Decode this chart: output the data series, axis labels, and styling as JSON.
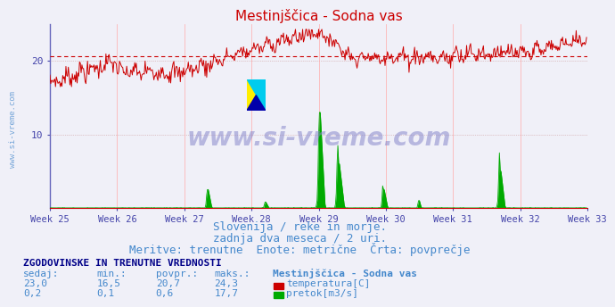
{
  "title": "Mestinjščica - Sodna vas",
  "title_color": "#cc0000",
  "title_fontsize": 11,
  "bg_color": "#f0f0f8",
  "plot_bg_color": "#f0f0f8",
  "grid_color": "#cc9999",
  "xticklabels": [
    "Week 25",
    "Week 26",
    "Week 27",
    "Week 28",
    "Week 29",
    "Week 30",
    "Week 31",
    "Week 32",
    "Week 33"
  ],
  "xtick_positions": [
    0,
    84,
    168,
    252,
    336,
    420,
    504,
    588,
    672
  ],
  "ylim": [
    0,
    25
  ],
  "yticks": [
    10,
    20
  ],
  "n_points": 672,
  "temp_avg": 20.7,
  "temp_color": "#cc0000",
  "flow_color": "#00aa00",
  "avg_line_color": "#cc0000",
  "watermark_text": "www.si-vreme.com",
  "watermark_color": "#8888cc",
  "watermark_fontsize": 20,
  "sub_text1": "Slovenija / reke in morje.",
  "sub_text2": "zadnja dva meseca / 2 uri.",
  "sub_text3": "Meritve: trenutne  Enote: metrične  Črta: povprečje",
  "sub_color": "#4488cc",
  "sub_fontsize": 9,
  "table_header": "ZGODOVINSKE IN TRENUTNE VREDNOSTI",
  "table_col1": "sedaj:",
  "table_col2": "min.:",
  "table_col3": "povpr.:",
  "table_col4": "maks.:",
  "table_col5": "Mestinjščica - Sodna vas",
  "table_row1": [
    "23,0",
    "16,5",
    "20,7",
    "24,3"
  ],
  "table_row2": [
    "0,2",
    "0,1",
    "0,6",
    "17,7"
  ],
  "legend_temp": "temperatura[C]",
  "legend_flow": "pretok[m3/s]",
  "table_color": "#4488cc",
  "table_header_color": "#000088",
  "table_fontsize": 8,
  "tick_color": "#4444aa",
  "spine_left_color": "#6666bb",
  "spine_bottom_color": "#cc0000",
  "vline_color": "#ffaaaa"
}
